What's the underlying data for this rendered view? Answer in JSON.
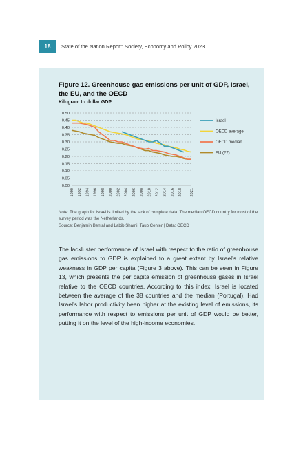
{
  "header": {
    "page_number": "18",
    "running_title": "State of the Nation Report: Society, Economy and Policy 2023"
  },
  "figure": {
    "title": "Figure 12. Greenhouse gas emissions per unit of GDP, Israel, the EU, and the OECD",
    "subtitle": "Kilogram to dollar GDP",
    "note": "Note: The graph for Israel is limited by the lack of complete data. The median OECD country for most of the survey period was the Netherlands.",
    "source": "Source: Benjamin Bental and Labib Shami, Taub Center | Data: OECD"
  },
  "chart_data": {
    "type": "line",
    "title": "",
    "xlabel": "",
    "ylabel": "",
    "x": [
      1990,
      1991,
      1992,
      1993,
      1994,
      1995,
      1996,
      1997,
      1998,
      1999,
      2000,
      2001,
      2002,
      2003,
      2004,
      2005,
      2006,
      2007,
      2008,
      2009,
      2010,
      2011,
      2012,
      2013,
      2014,
      2015,
      2016,
      2017,
      2018,
      2019,
      2020,
      2021
    ],
    "x_tick_labels": [
      "1990",
      "1992",
      "1994",
      "1996",
      "1998",
      "2000",
      "2002",
      "2004",
      "2006",
      "2008",
      "2010",
      "2012",
      "2014",
      "2016",
      "2018",
      "2021"
    ],
    "y_tick_labels": [
      "0.00",
      "0.05",
      "0.10",
      "0.15",
      "0.20",
      "0.25",
      "0.30",
      "0.35",
      "0.40",
      "0.45",
      "0.50"
    ],
    "ylim": [
      0,
      0.5
    ],
    "grid": true,
    "legend_position": "right",
    "series": [
      {
        "name": "Israel",
        "color": "#3a9fb8",
        "values": [
          null,
          null,
          null,
          null,
          null,
          null,
          null,
          null,
          null,
          null,
          null,
          null,
          null,
          0.37,
          0.36,
          0.35,
          0.34,
          0.33,
          0.32,
          0.31,
          0.3,
          0.3,
          0.31,
          0.29,
          0.27,
          0.27,
          0.26,
          0.25,
          0.24,
          0.23,
          null,
          null
        ]
      },
      {
        "name": "OECD average",
        "color": "#f2d43a",
        "values": [
          0.45,
          0.45,
          0.44,
          0.43,
          0.43,
          0.42,
          0.41,
          0.4,
          0.39,
          0.38,
          0.37,
          0.365,
          0.36,
          0.355,
          0.35,
          0.34,
          0.33,
          0.32,
          0.315,
          0.31,
          0.305,
          0.3,
          0.29,
          0.285,
          0.28,
          0.27,
          0.265,
          0.26,
          0.25,
          0.245,
          0.235,
          0.23
        ]
      },
      {
        "name": "OECD median",
        "color": "#f07850",
        "values": [
          0.43,
          0.43,
          0.43,
          0.425,
          0.42,
          0.41,
          0.4,
          0.37,
          0.35,
          0.33,
          0.31,
          0.31,
          0.3,
          0.3,
          0.29,
          0.28,
          0.27,
          0.26,
          0.255,
          0.25,
          0.255,
          0.24,
          0.24,
          0.235,
          0.23,
          0.22,
          0.215,
          0.21,
          0.2,
          0.19,
          0.18,
          0.18
        ]
      },
      {
        "name": "EU (27)",
        "color": "#b08a2a",
        "values": [
          0.38,
          0.375,
          0.37,
          0.36,
          0.355,
          0.35,
          0.345,
          0.33,
          0.32,
          0.31,
          0.3,
          0.295,
          0.29,
          0.29,
          0.28,
          0.275,
          0.27,
          0.26,
          0.25,
          0.24,
          0.24,
          0.23,
          0.225,
          0.22,
          0.21,
          0.205,
          0.2,
          0.2,
          0.195,
          0.185,
          0.18,
          0.18
        ]
      }
    ]
  },
  "body": {
    "paragraph": "The lackluster performance of Israel with respect to the ratio of greenhouse gas emissions to GDP is explained to a great extent by Israel’s relative weakness in GDP per capita (Figure 3 above). This can be seen in Figure 13, which presents the per capita emission of greenhouse gases in Israel relative to the OECD countries. According to this index, Israel is located between the average of the 38 countries and the median (Portugal). Had Israel’s labor productivity been higher at the existing level of emissions, its performance with respect to emissions per unit of GDP would be better, putting it on the level of the high-income economies."
  }
}
